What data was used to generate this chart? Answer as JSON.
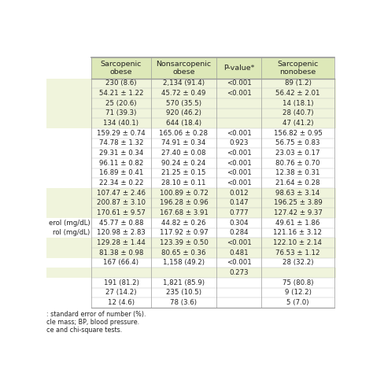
{
  "headers": [
    "Sarcopenic\nobese",
    "Nonsarcopenic\nobese",
    "P-value*",
    "Sarcopenic\nnonobese"
  ],
  "rows": [
    [
      "230 (8.6)",
      "2,134 (91.4)",
      "<0.001",
      "89 (1.2)"
    ],
    [
      "54.21 ± 1.22",
      "45.72 ± 0.49",
      "<0.001",
      "56.42 ± 2.01"
    ],
    [
      "25 (20.6)",
      "570 (35.5)",
      "",
      "14 (18.1)"
    ],
    [
      "71 (39.3)",
      "920 (46.2)",
      "",
      "28 (40.7)"
    ],
    [
      "134 (40.1)",
      "644 (18.4)",
      "",
      "47 (41.2)"
    ],
    [
      "159.29 ± 0.74",
      "165.06 ± 0.28",
      "<0.001",
      "156.82 ± 0.95"
    ],
    [
      "74.78 ± 1.32",
      "74.91 ± 0.34",
      "0.923",
      "56.75 ± 0.83"
    ],
    [
      "29.31 ± 0.34",
      "27.40 ± 0.08",
      "<0.001",
      "23.03 ± 0.17"
    ],
    [
      "96.11 ± 0.82",
      "90.24 ± 0.24",
      "<0.001",
      "80.76 ± 0.70"
    ],
    [
      "16.89 ± 0.41",
      "21.25 ± 0.15",
      "<0.001",
      "12.38 ± 0.31"
    ],
    [
      "22.34 ± 0.22",
      "28.10 ± 0.11",
      "<0.001",
      "21.64 ± 0.28"
    ],
    [
      "107.47 ± 2.46",
      "100.89 ± 0.72",
      "0.012",
      "98.63 ± 3.14"
    ],
    [
      "200.87 ± 3.10",
      "196.28 ± 0.96",
      "0.147",
      "196.25 ± 3.89"
    ],
    [
      "170.61 ± 9.57",
      "167.68 ± 3.91",
      "0.777",
      "127.42 ± 9.37"
    ],
    [
      "45.77 ± 0.88",
      "44.82 ± 0.26",
      "0.304",
      "49.61 ± 1.86"
    ],
    [
      "120.98 ± 2.83",
      "117.92 ± 0.97",
      "0.284",
      "121.16 ± 3.12"
    ],
    [
      "129.28 ± 1.44",
      "123.39 ± 0.50",
      "<0.001",
      "122.10 ± 2.14"
    ],
    [
      "81.38 ± 0.98",
      "80.65 ± 0.36",
      "0.481",
      "76.53 ± 1.12"
    ],
    [
      "167 (66.4)",
      "1,158 (49.2)",
      "<0.001",
      "28 (32.2)"
    ],
    [
      "",
      "",
      "0.273",
      ""
    ],
    [
      "191 (81.2)",
      "1,821 (85.9)",
      "",
      "75 (80.8)"
    ],
    [
      "27 (14.2)",
      "235 (10.5)",
      "",
      "9 (12.2)"
    ],
    [
      "12 (4.6)",
      "78 (3.6)",
      "",
      "5 (7.0)"
    ]
  ],
  "row_labels": [
    "",
    "",
    "",
    "",
    "",
    "",
    "",
    "",
    "",
    "",
    "",
    "",
    "",
    "",
    "erol (mg/dL)",
    "rol (mg/dL)",
    "",
    "",
    "",
    "",
    "",
    "",
    ""
  ],
  "row_bg_colors": [
    "#f0f4dc",
    "#f0f4dc",
    "#f0f4dc",
    "#f0f4dc",
    "#f0f4dc",
    "#ffffff",
    "#ffffff",
    "#ffffff",
    "#ffffff",
    "#ffffff",
    "#ffffff",
    "#f0f4dc",
    "#f0f4dc",
    "#f0f4dc",
    "#ffffff",
    "#ffffff",
    "#f0f4dc",
    "#f0f4dc",
    "#ffffff",
    "#f0f4dc",
    "#ffffff",
    "#ffffff",
    "#ffffff"
  ],
  "footnotes": [
    ": standard error of number (%).",
    "cle mass; BP, blood pressure.",
    "ce and chi-square tests."
  ],
  "header_bg": "#dde8b8",
  "border_color": "#999999",
  "text_color": "#222222",
  "font_size": 6.2,
  "header_font_size": 6.8,
  "footnote_font_size": 5.8
}
